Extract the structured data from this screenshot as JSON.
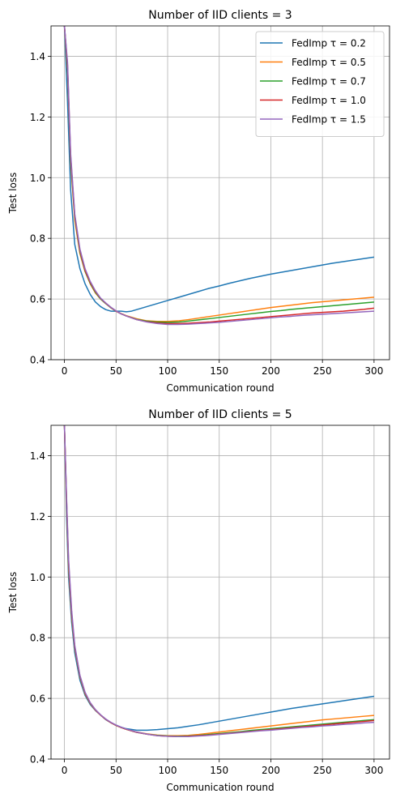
{
  "chart_data": [
    {
      "type": "line",
      "title": "Number of IID clients = 3",
      "xlabel": "Communication round",
      "ylabel": "Test loss",
      "xlim": [
        -13,
        315
      ],
      "ylim": [
        0.4,
        1.5
      ],
      "xticks": [
        0,
        50,
        100,
        150,
        200,
        250,
        300
      ],
      "yticks": [
        0.4,
        0.6,
        0.8,
        1.0,
        1.2,
        1.4
      ],
      "xtick_labels": [
        "0",
        "50",
        "100",
        "150",
        "200",
        "250",
        "300"
      ],
      "ytick_labels": [
        "0.4",
        "0.6",
        "0.8",
        "1.0",
        "1.2",
        "1.4"
      ],
      "grid": true,
      "legend_position": "top-right",
      "series": [
        {
          "name": "FedImp τ = 0.2",
          "color": "#1f77b4",
          "x": [
            0,
            3,
            6,
            10,
            15,
            20,
            25,
            30,
            35,
            40,
            45,
            50,
            55,
            60,
            65,
            70,
            75,
            80,
            90,
            100,
            110,
            120,
            130,
            140,
            150,
            160,
            170,
            180,
            190,
            200,
            210,
            220,
            230,
            240,
            250,
            260,
            270,
            280,
            290,
            300
          ],
          "y": [
            1.5,
            1.25,
            0.96,
            0.78,
            0.7,
            0.65,
            0.615,
            0.59,
            0.575,
            0.565,
            0.56,
            0.56,
            0.56,
            0.558,
            0.56,
            0.565,
            0.57,
            0.575,
            0.585,
            0.595,
            0.605,
            0.615,
            0.625,
            0.635,
            0.643,
            0.652,
            0.66,
            0.668,
            0.675,
            0.682,
            0.688,
            0.694,
            0.7,
            0.706,
            0.712,
            0.718,
            0.723,
            0.728,
            0.733,
            0.738
          ]
        },
        {
          "name": "FedImp τ = 0.5",
          "color": "#ff7f0e",
          "x": [
            0,
            3,
            6,
            10,
            15,
            20,
            25,
            30,
            35,
            40,
            45,
            50,
            55,
            60,
            70,
            80,
            90,
            100,
            110,
            120,
            130,
            140,
            150,
            160,
            170,
            180,
            190,
            200,
            210,
            220,
            230,
            240,
            250,
            260,
            270,
            280,
            290,
            300
          ],
          "y": [
            1.5,
            1.35,
            1.05,
            0.86,
            0.75,
            0.69,
            0.65,
            0.62,
            0.6,
            0.585,
            0.572,
            0.56,
            0.552,
            0.545,
            0.535,
            0.528,
            0.526,
            0.526,
            0.528,
            0.532,
            0.537,
            0.542,
            0.547,
            0.552,
            0.557,
            0.562,
            0.567,
            0.572,
            0.576,
            0.58,
            0.584,
            0.588,
            0.591,
            0.594,
            0.597,
            0.6,
            0.603,
            0.606
          ]
        },
        {
          "name": "FedImp τ = 0.7",
          "color": "#2ca02c",
          "x": [
            0,
            3,
            6,
            10,
            15,
            20,
            25,
            30,
            35,
            40,
            45,
            50,
            55,
            60,
            70,
            80,
            90,
            100,
            110,
            120,
            130,
            140,
            150,
            160,
            170,
            180,
            190,
            200,
            210,
            220,
            230,
            240,
            250,
            260,
            270,
            280,
            290,
            300
          ],
          "y": [
            1.5,
            1.36,
            1.06,
            0.87,
            0.755,
            0.692,
            0.652,
            0.622,
            0.6,
            0.585,
            0.571,
            0.56,
            0.551,
            0.544,
            0.533,
            0.527,
            0.524,
            0.523,
            0.524,
            0.527,
            0.531,
            0.535,
            0.539,
            0.543,
            0.547,
            0.551,
            0.555,
            0.559,
            0.562,
            0.566,
            0.569,
            0.572,
            0.575,
            0.578,
            0.581,
            0.584,
            0.587,
            0.59
          ]
        },
        {
          "name": "FedImp τ = 1.0",
          "color": "#d62728",
          "x": [
            0,
            3,
            6,
            10,
            15,
            20,
            25,
            30,
            35,
            40,
            45,
            50,
            55,
            60,
            70,
            80,
            90,
            100,
            110,
            120,
            130,
            140,
            150,
            160,
            170,
            180,
            190,
            200,
            210,
            220,
            230,
            240,
            250,
            260,
            270,
            280,
            290,
            300
          ],
          "y": [
            1.5,
            1.37,
            1.07,
            0.875,
            0.76,
            0.695,
            0.655,
            0.625,
            0.602,
            0.586,
            0.572,
            0.56,
            0.551,
            0.544,
            0.532,
            0.525,
            0.521,
            0.519,
            0.519,
            0.52,
            0.522,
            0.524,
            0.527,
            0.53,
            0.533,
            0.536,
            0.539,
            0.542,
            0.545,
            0.548,
            0.551,
            0.554,
            0.556,
            0.558,
            0.56,
            0.563,
            0.566,
            0.57
          ]
        },
        {
          "name": "FedImp τ = 1.5",
          "color": "#9467bd",
          "x": [
            0,
            3,
            6,
            10,
            15,
            20,
            25,
            30,
            35,
            40,
            45,
            50,
            55,
            60,
            70,
            80,
            90,
            100,
            110,
            120,
            130,
            140,
            150,
            160,
            170,
            180,
            190,
            200,
            210,
            220,
            230,
            240,
            250,
            260,
            270,
            280,
            290,
            300
          ],
          "y": [
            1.5,
            1.38,
            1.08,
            0.88,
            0.765,
            0.7,
            0.658,
            0.627,
            0.603,
            0.587,
            0.573,
            0.561,
            0.551,
            0.544,
            0.532,
            0.524,
            0.519,
            0.516,
            0.516,
            0.517,
            0.519,
            0.521,
            0.523,
            0.526,
            0.529,
            0.532,
            0.535,
            0.538,
            0.541,
            0.543,
            0.546,
            0.548,
            0.55,
            0.552,
            0.554,
            0.556,
            0.558,
            0.56
          ]
        }
      ]
    },
    {
      "type": "line",
      "title": "Number of IID clients = 5",
      "xlabel": "Communication round",
      "ylabel": "Test loss",
      "xlim": [
        -13,
        315
      ],
      "ylim": [
        0.4,
        1.5
      ],
      "xticks": [
        0,
        50,
        100,
        150,
        200,
        250,
        300
      ],
      "yticks": [
        0.4,
        0.6,
        0.8,
        1.0,
        1.2,
        1.4
      ],
      "xtick_labels": [
        "0",
        "50",
        "100",
        "150",
        "200",
        "250",
        "300"
      ],
      "ytick_labels": [
        "0.4",
        "0.6",
        "0.8",
        "1.0",
        "1.2",
        "1.4"
      ],
      "grid": true,
      "legend_position": "none",
      "series": [
        {
          "name": "FedImp τ = 0.2",
          "color": "#1f77b4",
          "x": [
            0,
            2,
            4,
            7,
            10,
            15,
            20,
            25,
            30,
            35,
            40,
            45,
            50,
            55,
            60,
            70,
            80,
            90,
            100,
            110,
            120,
            130,
            140,
            150,
            160,
            170,
            180,
            190,
            200,
            210,
            220,
            230,
            240,
            250,
            260,
            270,
            280,
            290,
            300
          ],
          "y": [
            1.5,
            1.2,
            1.0,
            0.85,
            0.75,
            0.66,
            0.61,
            0.58,
            0.56,
            0.545,
            0.53,
            0.52,
            0.512,
            0.505,
            0.5,
            0.495,
            0.495,
            0.497,
            0.5,
            0.503,
            0.508,
            0.513,
            0.519,
            0.525,
            0.531,
            0.537,
            0.543,
            0.549,
            0.555,
            0.561,
            0.567,
            0.572,
            0.577,
            0.582,
            0.587,
            0.592,
            0.597,
            0.602,
            0.607
          ]
        },
        {
          "name": "FedImp τ = 0.5",
          "color": "#ff7f0e",
          "x": [
            0,
            2,
            4,
            7,
            10,
            15,
            20,
            25,
            30,
            35,
            40,
            45,
            50,
            55,
            60,
            70,
            80,
            90,
            100,
            110,
            120,
            130,
            140,
            150,
            160,
            170,
            180,
            190,
            200,
            210,
            220,
            230,
            240,
            250,
            260,
            270,
            280,
            290,
            300
          ],
          "y": [
            1.5,
            1.24,
            1.03,
            0.87,
            0.765,
            0.67,
            0.615,
            0.583,
            0.561,
            0.545,
            0.531,
            0.52,
            0.511,
            0.504,
            0.498,
            0.489,
            0.483,
            0.479,
            0.477,
            0.477,
            0.478,
            0.481,
            0.485,
            0.489,
            0.493,
            0.497,
            0.501,
            0.505,
            0.509,
            0.513,
            0.517,
            0.521,
            0.525,
            0.529,
            0.532,
            0.535,
            0.538,
            0.541,
            0.544
          ]
        },
        {
          "name": "FedImp τ = 0.7",
          "color": "#2ca02c",
          "x": [
            0,
            2,
            4,
            7,
            10,
            15,
            20,
            25,
            30,
            35,
            40,
            45,
            50,
            55,
            60,
            70,
            80,
            90,
            100,
            110,
            120,
            130,
            140,
            150,
            160,
            170,
            180,
            190,
            200,
            210,
            220,
            230,
            240,
            250,
            260,
            270,
            280,
            290,
            300
          ],
          "y": [
            1.5,
            1.25,
            1.04,
            0.875,
            0.768,
            0.672,
            0.617,
            0.584,
            0.562,
            0.545,
            0.531,
            0.52,
            0.511,
            0.504,
            0.498,
            0.488,
            0.482,
            0.478,
            0.476,
            0.475,
            0.476,
            0.478,
            0.481,
            0.484,
            0.487,
            0.49,
            0.494,
            0.497,
            0.5,
            0.503,
            0.506,
            0.509,
            0.512,
            0.515,
            0.518,
            0.521,
            0.524,
            0.527,
            0.53
          ]
        },
        {
          "name": "FedImp τ = 1.0",
          "color": "#d62728",
          "x": [
            0,
            2,
            4,
            7,
            10,
            15,
            20,
            25,
            30,
            35,
            40,
            45,
            50,
            55,
            60,
            70,
            80,
            90,
            100,
            110,
            120,
            130,
            140,
            150,
            160,
            170,
            180,
            190,
            200,
            210,
            220,
            230,
            240,
            250,
            260,
            270,
            280,
            290,
            300
          ],
          "y": [
            1.5,
            1.26,
            1.05,
            0.88,
            0.77,
            0.674,
            0.618,
            0.585,
            0.562,
            0.545,
            0.531,
            0.52,
            0.511,
            0.504,
            0.498,
            0.488,
            0.482,
            0.477,
            0.475,
            0.474,
            0.475,
            0.477,
            0.479,
            0.482,
            0.485,
            0.488,
            0.491,
            0.494,
            0.497,
            0.5,
            0.503,
            0.506,
            0.509,
            0.512,
            0.515,
            0.518,
            0.521,
            0.524,
            0.527
          ]
        },
        {
          "name": "FedImp τ = 1.5",
          "color": "#9467bd",
          "x": [
            0,
            2,
            4,
            7,
            10,
            15,
            20,
            25,
            30,
            35,
            40,
            45,
            50,
            55,
            60,
            70,
            80,
            90,
            100,
            110,
            120,
            130,
            140,
            150,
            160,
            170,
            180,
            190,
            200,
            210,
            220,
            230,
            240,
            250,
            260,
            270,
            280,
            290,
            300
          ],
          "y": [
            1.5,
            1.27,
            1.06,
            0.89,
            0.775,
            0.676,
            0.62,
            0.586,
            0.563,
            0.546,
            0.532,
            0.521,
            0.512,
            0.505,
            0.499,
            0.489,
            0.482,
            0.477,
            0.475,
            0.474,
            0.474,
            0.476,
            0.478,
            0.481,
            0.484,
            0.487,
            0.49,
            0.493,
            0.495,
            0.498,
            0.501,
            0.504,
            0.506,
            0.509,
            0.511,
            0.514,
            0.516,
            0.519,
            0.521
          ]
        }
      ]
    }
  ]
}
